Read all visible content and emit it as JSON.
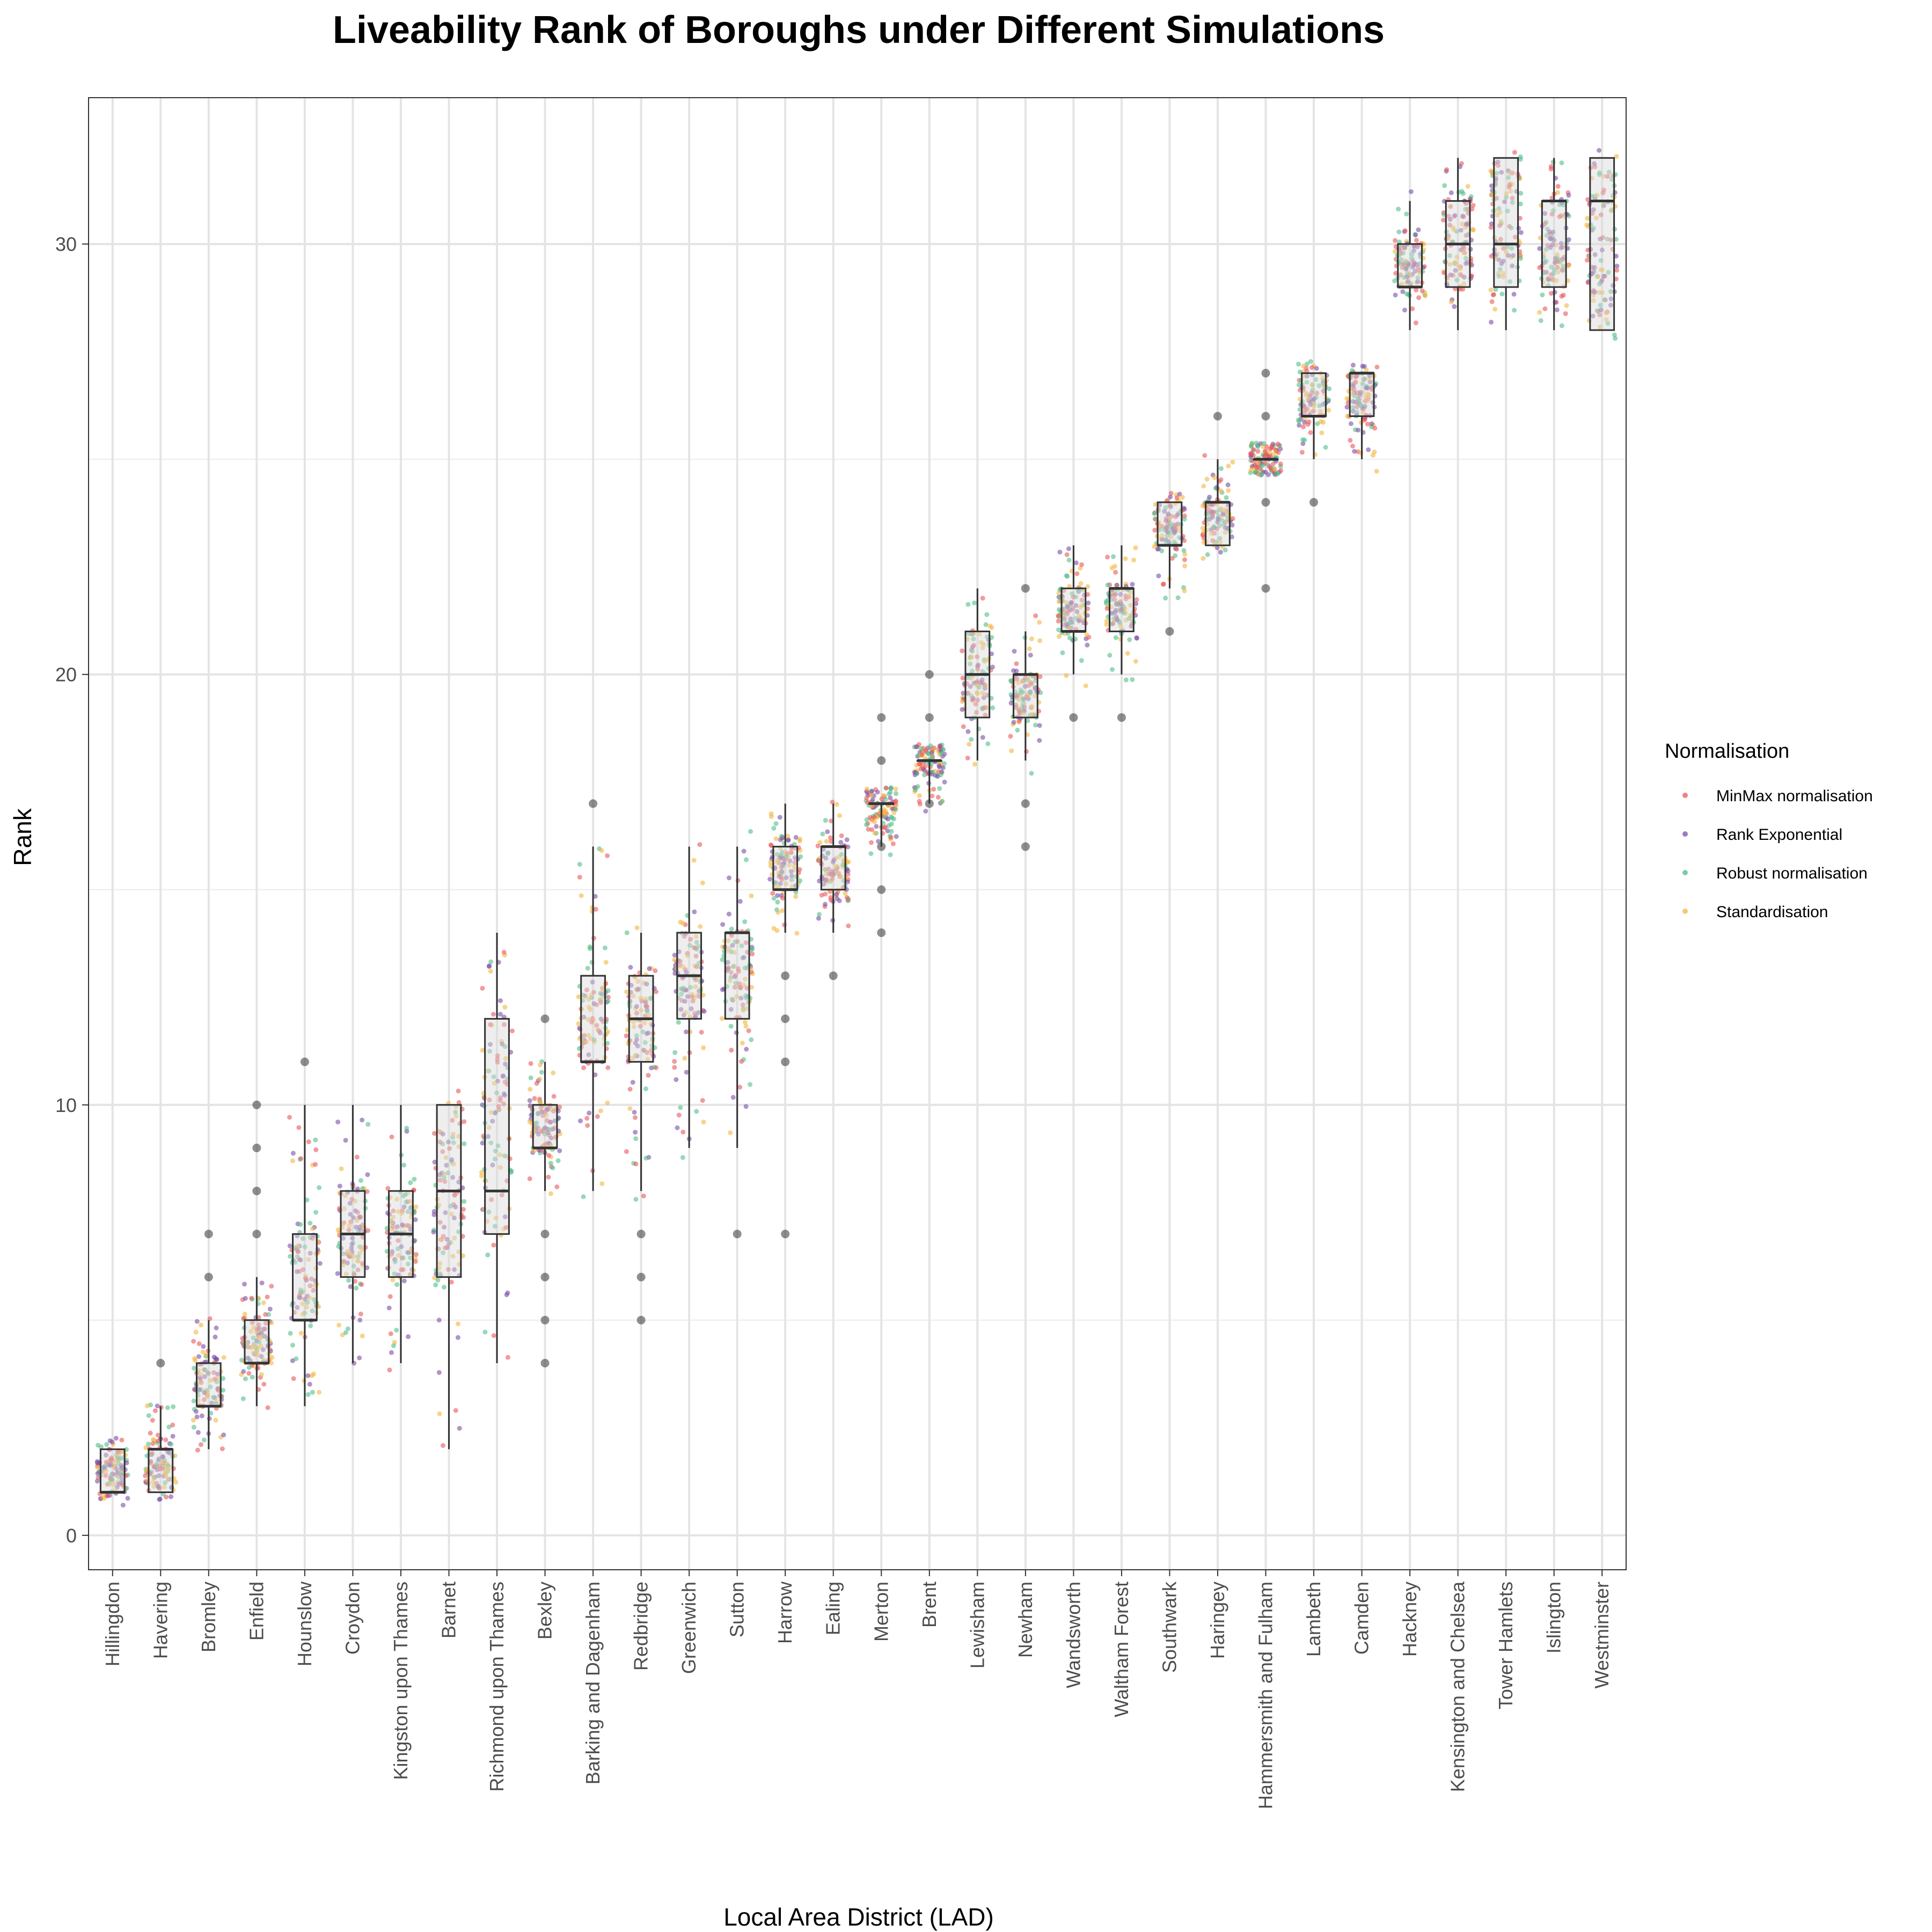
{
  "chart_data": {
    "type": "boxplot",
    "title": "Liveability Rank of Boroughs under Different Simulations",
    "xlabel": "Local Area District (LAD)",
    "ylabel": "Rank",
    "ylim": [
      -0.8,
      33.4
    ],
    "yticks": [
      0,
      10,
      20,
      30
    ],
    "grid": true,
    "legend": {
      "title": "Normalisation",
      "position": "right",
      "entries": [
        {
          "name": "MinMax normalisation",
          "color": "#E8595C"
        },
        {
          "name": "Rank Exponential",
          "color": "#7B4FA5"
        },
        {
          "name": "Robust normalisation",
          "color": "#52BE8A"
        },
        {
          "name": "Standardisation",
          "color": "#F4B63F"
        }
      ]
    },
    "categories": [
      "Hillingdon",
      "Havering",
      "Bromley",
      "Enfield",
      "Hounslow",
      "Croydon",
      "Kingston upon Thames",
      "Barnet",
      "Richmond upon Thames",
      "Bexley",
      "Barking and Dagenham",
      "Redbridge",
      "Greenwich",
      "Sutton",
      "Harrow",
      "Ealing",
      "Merton",
      "Brent",
      "Lewisham",
      "Newham",
      "Wandsworth",
      "Waltham Forest",
      "Southwark",
      "Haringey",
      "Hammersmith and Fulham",
      "Lambeth",
      "Camden",
      "Hackney",
      "Kensington and Chelsea",
      "Tower Hamlets",
      "Islington",
      "Westminster"
    ],
    "boxes": [
      {
        "whisker_low": 1,
        "q1": 1,
        "median": 1,
        "q3": 2,
        "whisker_high": 2,
        "outliers": []
      },
      {
        "whisker_low": 1,
        "q1": 1,
        "median": 2,
        "q3": 2,
        "whisker_high": 3,
        "outliers": [
          4
        ]
      },
      {
        "whisker_low": 2,
        "q1": 3,
        "median": 3,
        "q3": 4,
        "whisker_high": 5,
        "outliers": [
          6,
          7
        ]
      },
      {
        "whisker_low": 3,
        "q1": 4,
        "median": 4,
        "q3": 5,
        "whisker_high": 6,
        "outliers": [
          7,
          8,
          9,
          10
        ]
      },
      {
        "whisker_low": 3,
        "q1": 5,
        "median": 5,
        "q3": 7,
        "whisker_high": 10,
        "outliers": [
          11
        ]
      },
      {
        "whisker_low": 4,
        "q1": 6,
        "median": 7,
        "q3": 8,
        "whisker_high": 10,
        "outliers": []
      },
      {
        "whisker_low": 4,
        "q1": 6,
        "median": 7,
        "q3": 8,
        "whisker_high": 10,
        "outliers": []
      },
      {
        "whisker_low": 2,
        "q1": 6,
        "median": 8,
        "q3": 10,
        "whisker_high": 10,
        "outliers": []
      },
      {
        "whisker_low": 4,
        "q1": 7,
        "median": 8,
        "q3": 12,
        "whisker_high": 14,
        "outliers": []
      },
      {
        "whisker_low": 8,
        "q1": 9,
        "median": 9,
        "q3": 10,
        "whisker_high": 11,
        "outliers": [
          4,
          5,
          6,
          7,
          12
        ]
      },
      {
        "whisker_low": 8,
        "q1": 11,
        "median": 11,
        "q3": 13,
        "whisker_high": 16,
        "outliers": [
          17
        ]
      },
      {
        "whisker_low": 8,
        "q1": 11,
        "median": 12,
        "q3": 13,
        "whisker_high": 14,
        "outliers": [
          5,
          6,
          7
        ]
      },
      {
        "whisker_low": 9,
        "q1": 12,
        "median": 13,
        "q3": 14,
        "whisker_high": 16,
        "outliers": []
      },
      {
        "whisker_low": 9,
        "q1": 12,
        "median": 14,
        "q3": 14,
        "whisker_high": 16,
        "outliers": [
          7
        ]
      },
      {
        "whisker_low": 14,
        "q1": 15,
        "median": 15,
        "q3": 16,
        "whisker_high": 17,
        "outliers": [
          7,
          11,
          12,
          13
        ]
      },
      {
        "whisker_low": 14,
        "q1": 15,
        "median": 16,
        "q3": 16,
        "whisker_high": 17,
        "outliers": [
          13
        ]
      },
      {
        "whisker_low": 16,
        "q1": 17,
        "median": 17,
        "q3": 17,
        "whisker_high": 17,
        "outliers": [
          14,
          15,
          16,
          18,
          19
        ]
      },
      {
        "whisker_low": 17,
        "q1": 18,
        "median": 18,
        "q3": 18,
        "whisker_high": 18,
        "outliers": [
          17,
          19,
          20
        ]
      },
      {
        "whisker_low": 18,
        "q1": 19,
        "median": 20,
        "q3": 21,
        "whisker_high": 22,
        "outliers": []
      },
      {
        "whisker_low": 18,
        "q1": 19,
        "median": 20,
        "q3": 20,
        "whisker_high": 21,
        "outliers": [
          16,
          17,
          22
        ]
      },
      {
        "whisker_low": 20,
        "q1": 21,
        "median": 21,
        "q3": 22,
        "whisker_high": 23,
        "outliers": [
          19
        ]
      },
      {
        "whisker_low": 20,
        "q1": 21,
        "median": 22,
        "q3": 22,
        "whisker_high": 23,
        "outliers": [
          19
        ]
      },
      {
        "whisker_low": 22,
        "q1": 23,
        "median": 23,
        "q3": 24,
        "whisker_high": 24,
        "outliers": [
          21
        ]
      },
      {
        "whisker_low": 23,
        "q1": 23,
        "median": 24,
        "q3": 24,
        "whisker_high": 25,
        "outliers": [
          26
        ]
      },
      {
        "whisker_low": 25,
        "q1": 25,
        "median": 25,
        "q3": 25,
        "whisker_high": 25,
        "outliers": [
          22,
          24,
          26,
          27
        ]
      },
      {
        "whisker_low": 25,
        "q1": 26,
        "median": 26,
        "q3": 27,
        "whisker_high": 27,
        "outliers": [
          24
        ]
      },
      {
        "whisker_low": 25,
        "q1": 26,
        "median": 27,
        "q3": 27,
        "whisker_high": 27,
        "outliers": []
      },
      {
        "whisker_low": 28,
        "q1": 29,
        "median": 29,
        "q3": 30,
        "whisker_high": 31,
        "outliers": []
      },
      {
        "whisker_low": 28,
        "q1": 29,
        "median": 30,
        "q3": 31,
        "whisker_high": 32,
        "outliers": []
      },
      {
        "whisker_low": 28,
        "q1": 29,
        "median": 30,
        "q3": 32,
        "whisker_high": 32,
        "outliers": []
      },
      {
        "whisker_low": 28,
        "q1": 29,
        "median": 31,
        "q3": 31,
        "whisker_high": 32,
        "outliers": []
      },
      {
        "whisker_low": 28,
        "q1": 28,
        "median": 31,
        "q3": 32,
        "whisker_high": 32,
        "outliers": []
      }
    ]
  }
}
